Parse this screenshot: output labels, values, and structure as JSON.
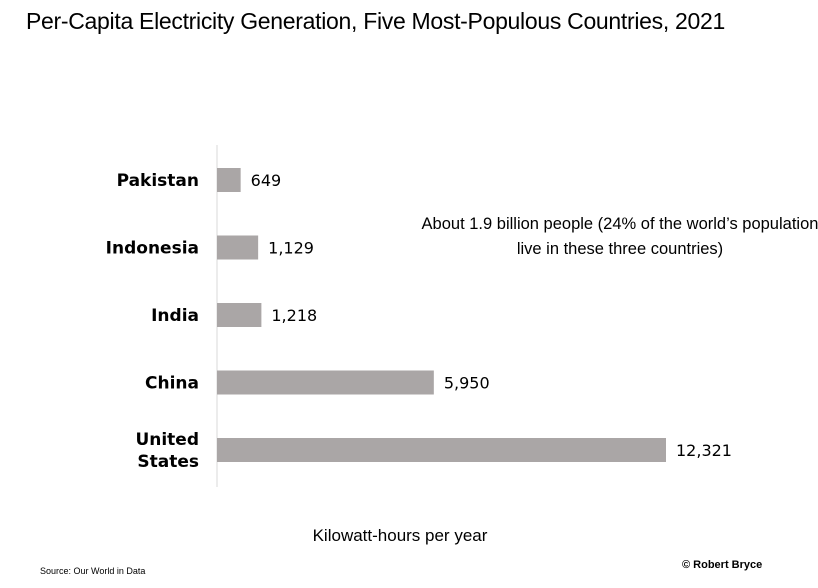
{
  "chart_data": {
    "type": "bar",
    "orientation": "horizontal",
    "title": "Per-Capita Electricity Generation, Five Most-Populous Countries, 2021",
    "xlabel": "Kilowatt-hours per year",
    "ylabel": "",
    "categories": [
      "Pakistan",
      "Indonesia",
      "India",
      "China",
      "United States"
    ],
    "category_lines": [
      [
        "Pakistan"
      ],
      [
        "Indonesia"
      ],
      [
        "India"
      ],
      [
        "China"
      ],
      [
        "United",
        "States"
      ]
    ],
    "values": [
      649,
      1129,
      1218,
      5950,
      12321
    ],
    "value_labels": [
      "649",
      "1,129",
      "1,218",
      "5,950",
      "12,321"
    ],
    "xlim": [
      0,
      14000
    ],
    "grid": false,
    "bar_color": "#aaa6a6",
    "annotation": "About 1.9 billion people (24% of the world’s population live in these three countries)"
  },
  "footer": {
    "source": "Source: Our World in Data",
    "credit": "© Robert Bryce"
  }
}
